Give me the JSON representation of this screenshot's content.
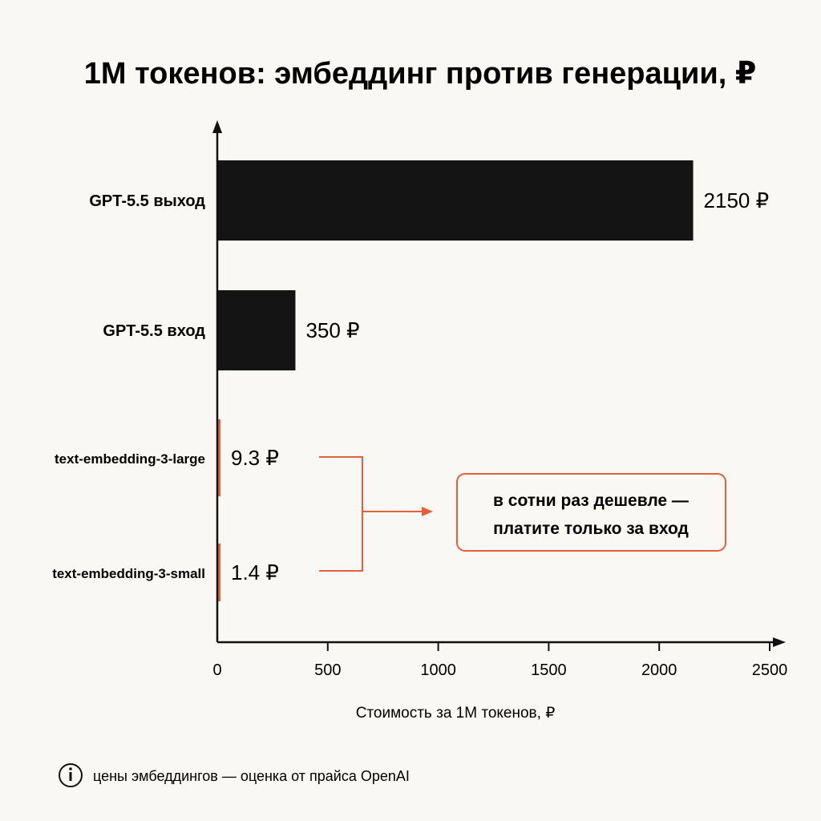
{
  "chart_data": {
    "type": "bar",
    "orientation": "horizontal",
    "title": "1M токенов: эмбеддинг против генерации, ₽",
    "xlabel": "Стоимость за 1M токенов, ₽",
    "ylabel": "",
    "xlim": [
      0,
      2500
    ],
    "xticks": [
      0,
      500,
      1000,
      1500,
      2000,
      2500
    ],
    "categories": [
      "GPT-5.5 выход",
      "GPT-5.5 вход",
      "text-embedding-3-large",
      "text-embedding-3-small"
    ],
    "values": [
      2150,
      350,
      9.3,
      1.4
    ],
    "value_labels": [
      "2150 ₽",
      "350 ₽",
      "9.3 ₽",
      "1.4 ₽"
    ],
    "bar_colors": [
      "#141414",
      "#141414",
      "#e2603a",
      "#e2603a"
    ],
    "grid": false
  },
  "annotation": {
    "line1": "в сотни раз дешевле —",
    "line2": "платите только за вход"
  },
  "footnote": {
    "icon": "info-icon",
    "text": "цены эмбеддингов — оценка от прайса OpenAI"
  },
  "colors": {
    "accent": "#e2603a",
    "bar_dark": "#141414",
    "background": "#faf8f4"
  }
}
